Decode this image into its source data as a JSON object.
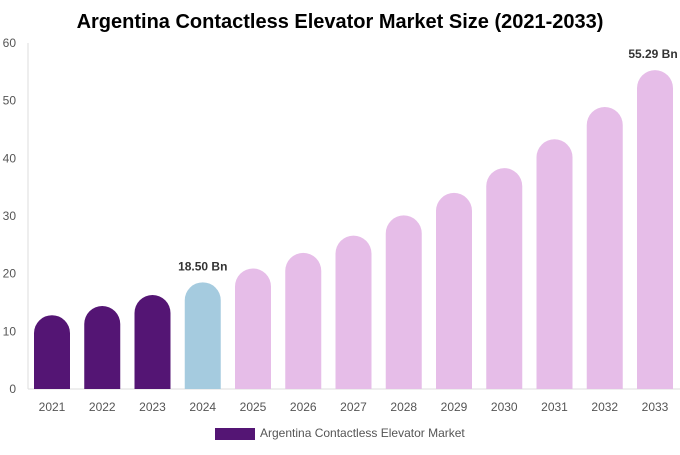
{
  "chart_data": {
    "type": "bar",
    "title": "Argentina Contactless Elevator Market Size (2021-2033)",
    "xlabel": "",
    "ylabel": "",
    "ylim": [
      0,
      60
    ],
    "yticks": [
      0,
      10,
      20,
      30,
      40,
      50,
      60
    ],
    "grid": false,
    "legend_position": "bottom",
    "categories": [
      "2021",
      "2022",
      "2023",
      "2024",
      "2025",
      "2026",
      "2027",
      "2028",
      "2029",
      "2030",
      "2031",
      "2032",
      "2033"
    ],
    "series": [
      {
        "name": "Argentina Contactless Elevator Market",
        "values": [
          12.8,
          14.4,
          16.3,
          18.5,
          20.9,
          23.6,
          26.6,
          30.1,
          34.0,
          38.3,
          43.3,
          48.9,
          55.29
        ],
        "colors": [
          "#541574",
          "#541574",
          "#541574",
          "#a5cbdf",
          "#e6bde8",
          "#e6bde8",
          "#e6bde8",
          "#e6bde8",
          "#e6bde8",
          "#e6bde8",
          "#e6bde8",
          "#e6bde8",
          "#e6bde8"
        ]
      }
    ],
    "annotations": [
      {
        "category": "2024",
        "text": "18.50 Bn"
      },
      {
        "category": "2033",
        "text": "55.29 Bn"
      }
    ],
    "legend_color": "#541574"
  }
}
